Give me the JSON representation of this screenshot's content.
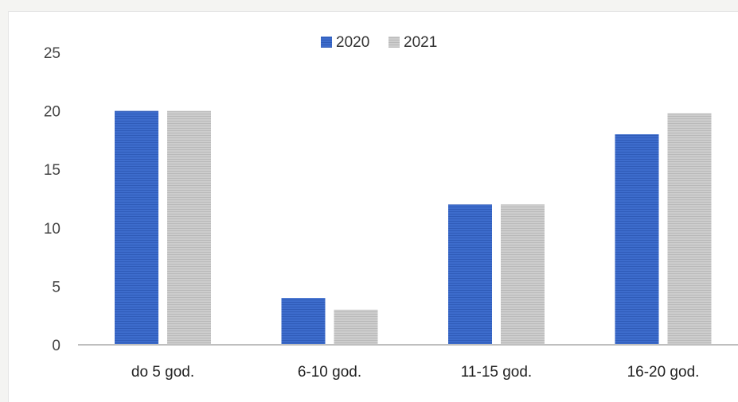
{
  "chart_data": {
    "type": "bar",
    "categories": [
      "do 5 god.",
      "6-10 god.",
      "11-15 god.",
      "16-20 god."
    ],
    "series": [
      {
        "name": "2020",
        "values": [
          20,
          4,
          12,
          18
        ],
        "color": "#3d6ccc"
      },
      {
        "name": "2021",
        "values": [
          20,
          3,
          12,
          19.8
        ],
        "color": "#c8c8c8"
      }
    ],
    "yticks": [
      "0",
      "5",
      "10",
      "15",
      "20",
      "25"
    ],
    "ylim": [
      0,
      25
    ],
    "legend_position": "top-center",
    "grid": false
  }
}
